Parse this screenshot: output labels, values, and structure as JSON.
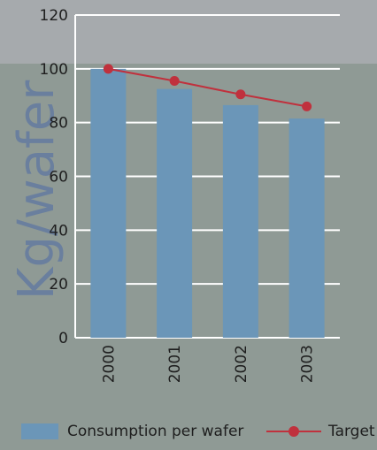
{
  "chart_data": {
    "type": "bar",
    "categories": [
      "2000",
      "2001",
      "2002",
      "2003"
    ],
    "series": [
      {
        "name": "Consumption per wafer",
        "type": "bar",
        "values": [
          100,
          92.5,
          86.5,
          81.5
        ]
      },
      {
        "name": "Target",
        "type": "line",
        "values": [
          100,
          95.5,
          90.5,
          86
        ]
      }
    ],
    "ylabel": "Kg/wafer",
    "ylim": [
      0,
      120
    ],
    "yticks": [
      0,
      20,
      40,
      60,
      80,
      100,
      120
    ],
    "grid": true,
    "legend_position": "bottom"
  },
  "colors": {
    "bar": "#6b96b8",
    "target_line": "#c0313d",
    "grid": "#ffffff",
    "background": "#8f9a95",
    "background_top": "#a6aaad",
    "text": "#1e1e1e",
    "ylabel": "#6a7f9e"
  },
  "legend": {
    "bar_label": "Consumption per wafer",
    "line_label": "Target"
  }
}
